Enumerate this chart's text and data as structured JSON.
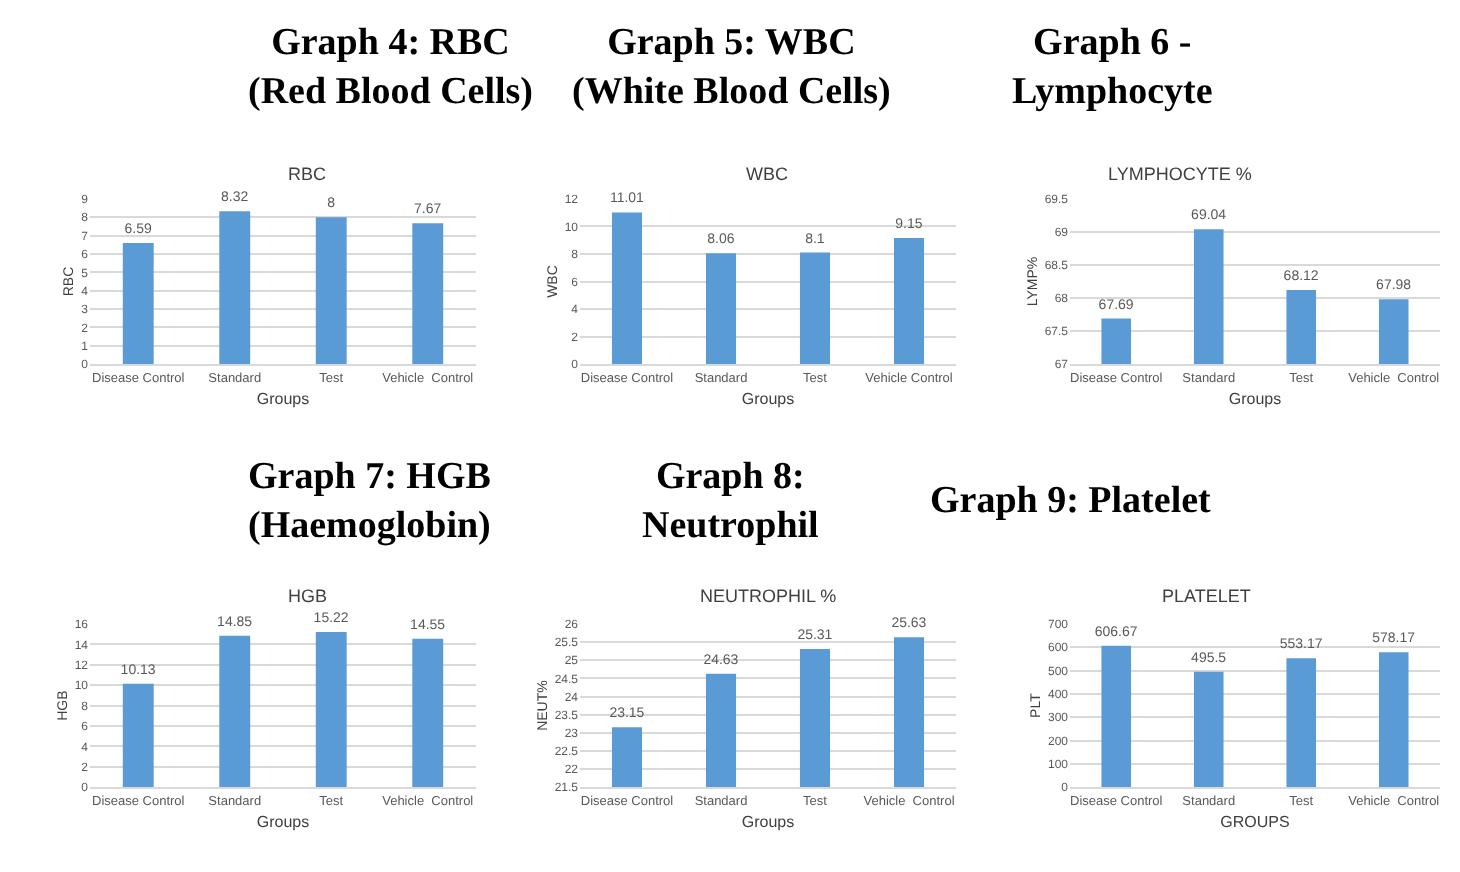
{
  "chart_data": [
    {
      "type": "bar",
      "title": "Graph 4: RBC\n(Red Blood Cells)",
      "subtitle": "RBC",
      "xlabel": "Groups",
      "ylabel": "RBC",
      "categories": [
        "Disease Control",
        "Standard",
        "Test",
        "Vehicle  Control"
      ],
      "values": [
        6.59,
        8.32,
        8,
        7.67
      ],
      "color": "#5b9bd5",
      "ylim": [
        0,
        9
      ],
      "yticks": [
        0,
        1,
        2,
        3,
        4,
        5,
        6,
        7,
        8,
        9
      ],
      "grid": "y",
      "data_labels": true
    },
    {
      "type": "bar",
      "title": "Graph 5: WBC\n(White Blood Cells)",
      "subtitle": "WBC",
      "xlabel": "Groups",
      "ylabel": "WBC",
      "categories": [
        "Disease Control",
        "Standard",
        "Test",
        "Vehicle Control"
      ],
      "values": [
        11.01,
        8.06,
        8.1,
        9.15
      ],
      "color": "#5b9bd5",
      "ylim": [
        0,
        12
      ],
      "yticks": [
        0,
        2,
        4,
        6,
        8,
        10,
        12
      ],
      "grid": "y",
      "data_labels": true
    },
    {
      "type": "bar",
      "title": "Graph 6 -\nLymphocyte",
      "subtitle": "LYMPHOCYTE %",
      "xlabel": "Groups",
      "ylabel": "LYMP%",
      "categories": [
        "Disease Control",
        "Standard",
        "Test",
        "Vehicle  Control"
      ],
      "values": [
        67.69,
        69.04,
        68.12,
        67.98
      ],
      "color": "#5b9bd5",
      "ylim": [
        67,
        69.5
      ],
      "yticks": [
        67,
        67.5,
        68,
        68.5,
        69,
        69.5
      ],
      "grid": "y",
      "data_labels": true
    },
    {
      "type": "bar",
      "title": "Graph 7: HGB\n(Haemoglobin)",
      "subtitle": "HGB",
      "xlabel": "Groups",
      "ylabel": "HGB",
      "categories": [
        "Disease Control",
        "Standard",
        "Test",
        "Vehicle  Control"
      ],
      "values": [
        10.13,
        14.85,
        15.22,
        14.55
      ],
      "color": "#5b9bd5",
      "ylim": [
        0,
        16
      ],
      "yticks": [
        0,
        2,
        4,
        6,
        8,
        10,
        12,
        14,
        16
      ],
      "grid": "y",
      "data_labels": true
    },
    {
      "type": "bar",
      "title": "Graph 8:\nNeutrophil",
      "subtitle": "NEUTROPHIL %",
      "xlabel": "Groups",
      "ylabel": "NEUT%",
      "categories": [
        "Disease Control",
        "Standard",
        "Test",
        "Vehicle  Control"
      ],
      "values": [
        23.15,
        24.63,
        25.31,
        25.63
      ],
      "color": "#5b9bd5",
      "ylim": [
        21.5,
        26
      ],
      "yticks": [
        21.5,
        22,
        22.5,
        23,
        23.5,
        24,
        24.5,
        25,
        25.5,
        26
      ],
      "grid": "y",
      "data_labels": true
    },
    {
      "type": "bar",
      "title": "Graph 9: Platelet",
      "subtitle": "PLATELET",
      "xlabel": "GROUPS",
      "ylabel": "PLT",
      "categories": [
        "Disease Control",
        "Standard",
        "Test",
        "Vehicle  Control"
      ],
      "values": [
        606.67,
        495.5,
        553.17,
        578.17
      ],
      "color": "#5b9bd5",
      "ylim": [
        0,
        700
      ],
      "yticks": [
        0,
        100,
        200,
        300,
        400,
        500,
        600,
        700
      ],
      "grid": "y",
      "data_labels": true
    }
  ]
}
